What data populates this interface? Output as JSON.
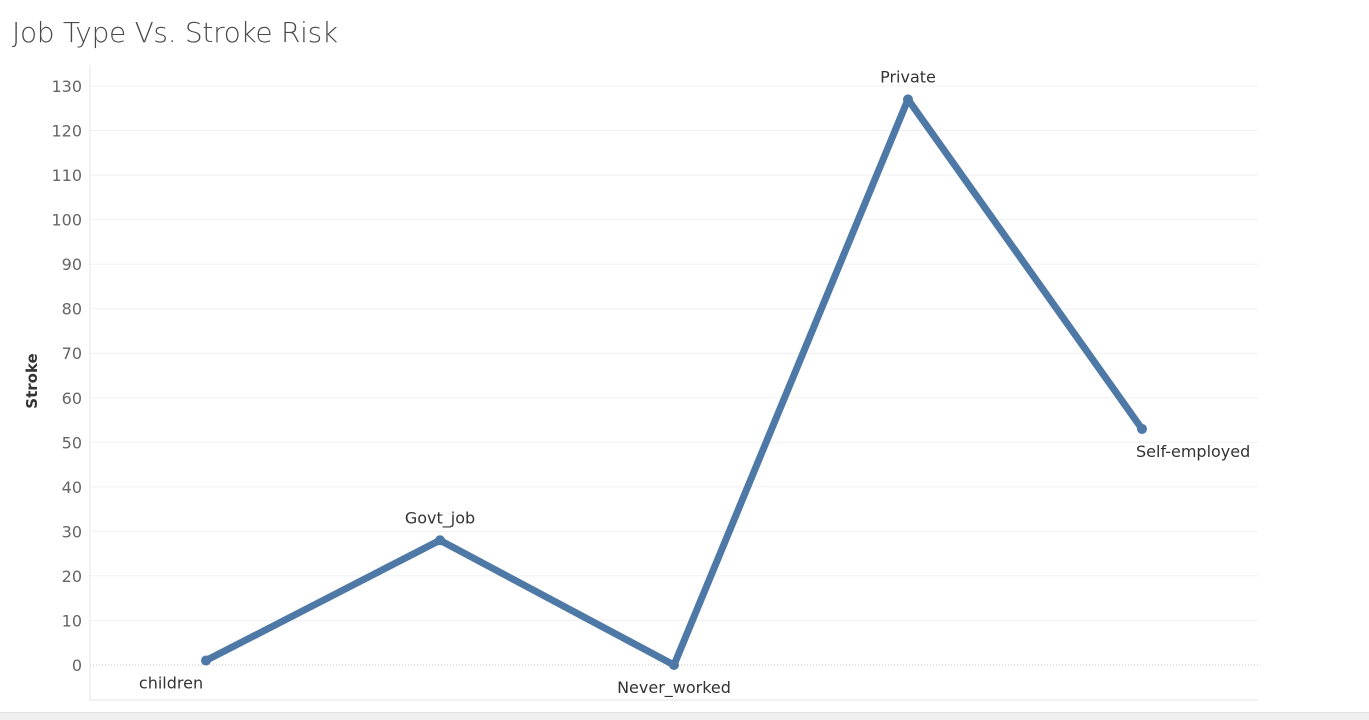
{
  "chart_data": {
    "type": "line",
    "title": "Job Type Vs. Stroke Risk",
    "xlabel": "",
    "ylabel": "Stroke",
    "categories": [
      "children",
      "Govt_job",
      "Never_worked",
      "Private",
      "Self-employed"
    ],
    "series": [
      {
        "values": [
          1,
          28,
          0,
          127,
          53
        ],
        "color": "#4e79a7"
      }
    ],
    "ylim": [
      0,
      130
    ],
    "yticks": [
      0,
      10,
      20,
      30,
      40,
      50,
      60,
      70,
      80,
      90,
      100,
      110,
      120,
      130
    ],
    "grid": true,
    "data_labels": "category names at each point"
  }
}
